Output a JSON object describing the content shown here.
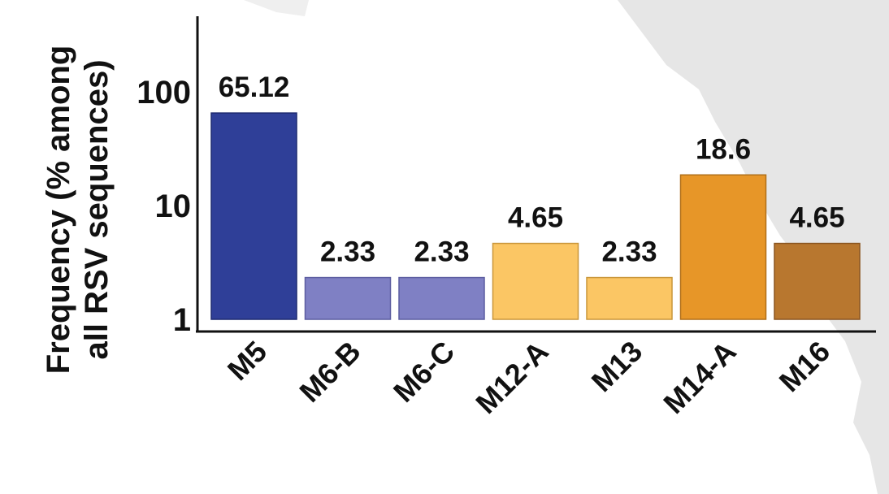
{
  "chart_data": {
    "type": "bar",
    "title": "",
    "xlabel": "",
    "ylabel_lines": [
      "Frequency (% among",
      "all RSV sequences)"
    ],
    "yscale": "log",
    "ylim": [
      1,
      250
    ],
    "yticks": [
      {
        "value": 1,
        "label": "1"
      },
      {
        "value": 10,
        "label": "10"
      },
      {
        "value": 100,
        "label": "100"
      }
    ],
    "categories": [
      "M5",
      "M6-B",
      "M6-C",
      "M12-A",
      "M13",
      "M14-A",
      "M16"
    ],
    "values": [
      65.12,
      2.33,
      2.33,
      4.65,
      2.33,
      18.6,
      4.65
    ],
    "value_labels": [
      "65.12",
      "2.33",
      "2.33",
      "4.65",
      "2.33",
      "18.6",
      "4.65"
    ],
    "colors": [
      "#2f3f98",
      "#7f80c4",
      "#7f80c4",
      "#fbc664",
      "#fbc664",
      "#e79628",
      "#b8772f"
    ],
    "stroke_colors": [
      "#1d2a70",
      "#5c5da0",
      "#5c5da0",
      "#c9963a",
      "#c9963a",
      "#b06f18",
      "#8a5520"
    ],
    "grid": false,
    "legend": "none"
  }
}
